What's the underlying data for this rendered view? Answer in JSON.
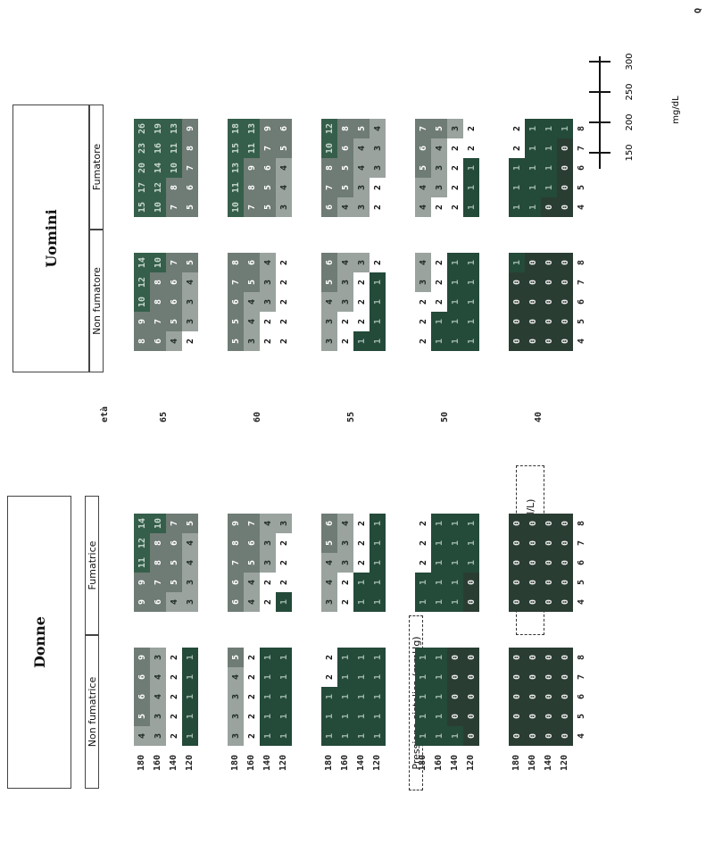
{
  "headers": {
    "women": "Donne",
    "men": "Uomini",
    "non_smoker_f": "Non fumatrice",
    "smoker_f": "Fumatrice",
    "non_smoker_m": "Non fumatore",
    "smoker_m": "Fumatore",
    "age_label": "età",
    "bp_label": "Pressione sistolica (mmHg)",
    "chol_label": "Colesterolo (mmol/L)",
    "mgdl_unit": "mg/dL",
    "page_mark": "Q"
  },
  "chart_data": {
    "type": "heatmap",
    "age_rows": [
      "65",
      "60",
      "55",
      "50",
      "40"
    ],
    "sbp_rows": [
      "180",
      "160",
      "140",
      "120"
    ],
    "chol_cols": [
      "4",
      "5",
      "6",
      "7",
      "8"
    ],
    "mgdl_ticks": [
      "150",
      "200",
      "250",
      "300"
    ],
    "groups": [
      {
        "name": "Non fumatrice",
        "panels": [
          [
            "4 5 6 6 9",
            "3 3 4 4 3",
            "2 2 2 2 2",
            "1 1 1 1 1"
          ],
          [
            "3 3 3 4 5",
            "2 2 2 2 2",
            "1 1 1 1 1",
            "1 1 1 1 1"
          ],
          [
            "1 1 1 2 2",
            "1 1 1 1 1",
            "1 1 1 1 1",
            "1 1 1 1 1"
          ],
          [
            "1 1 1 1 1",
            "1 1 1 1 1",
            "1 0 0 0 0",
            "0 0 0 0 0"
          ],
          [
            "0 0 0 0 0",
            "0 0 0 0 0",
            "0 0 0 0 0",
            "0 0 0 0 0"
          ]
        ]
      },
      {
        "name": "Fumatrice",
        "panels": [
          [
            "9 9 11 12 14",
            "6 7 8 8 10",
            "4 5 5 6 7",
            "3 3 4 4 5"
          ],
          [
            "6 6 7 8 9",
            "4 4 5 6 7",
            "2 2 3 3 4",
            "1 2 2 2 3"
          ],
          [
            "3 4 4 5 6",
            "2 2 3 3 4",
            "1 1 2 2 2",
            "1 1 1 1 1"
          ],
          [
            "1 1 2 2 2",
            "1 1 1 1 1",
            "1 1 1 1 1",
            "0 0 1 1 1"
          ],
          [
            "0 0 0 0 0",
            "0 0 0 0 0",
            "0 0 0 0 0",
            "0 0 0 0 0"
          ]
        ]
      },
      {
        "name": "Non fumatore",
        "panels": [
          [
            "8 9 10 12 14",
            "6 7 8 8 10",
            "4 5 6 6 7",
            "2 3 3 4 5"
          ],
          [
            "5 5 6 7 8",
            "3 4 4 5 6",
            "2 2 3 3 4",
            "2 2 2 2 2"
          ],
          [
            "3 3 4 5 6",
            "2 2 3 3 4",
            "1 2 2 2 3",
            "1 1 1 1 2"
          ],
          [
            "2 2 2 3 4",
            "1 1 2 2 2",
            "1 1 1 1 1",
            "1 1 1 1 1"
          ],
          [
            "0 0 0 0 1",
            "0 0 0 0 0",
            "0 0 0 0 0",
            "0 0 0 0 0"
          ]
        ]
      },
      {
        "name": "Fumatore",
        "panels": [
          [
            "15 17 20 23 26",
            "10 12 14 16 19",
            "7 8 10 11 13",
            "5 6 7 8 9"
          ],
          [
            "10 11 13 15 18",
            "7 8 9 11 13",
            "5 5 6 7 9",
            "3 4 4 5 6"
          ],
          [
            "6 7 8 10 12",
            "4 5 5 6 8",
            "3 3 4 4 5",
            "2 2 3 3 4"
          ],
          [
            "4 4 5 6 7",
            "2 3 3 4 5",
            "2 2 2 2 3",
            "1 1 1 2 2"
          ],
          [
            "1 1 1 2 2",
            "1 1 1 1 1",
            "0 1 1 1 1",
            "0 0 0 0 1"
          ]
        ]
      }
    ]
  }
}
